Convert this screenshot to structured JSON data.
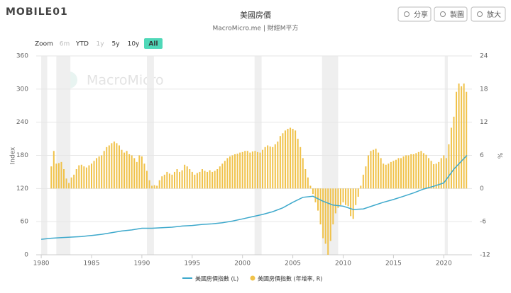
{
  "ui": {
    "logo": "MOBILE01",
    "buttons": [
      "分享",
      "製圖",
      "放大"
    ],
    "zoom_label": "Zoom",
    "ranges": [
      "6m",
      "YTD",
      "1y",
      "5y",
      "10y",
      "All"
    ],
    "disabled_ranges": [
      "6m",
      "1y"
    ],
    "active_range": "All",
    "watermark": "MacroMicro"
  },
  "chart_data": {
    "type": "bar_line",
    "title": "美國房價",
    "subtitle": "MacroMicro.me | 財經M平方",
    "ylabel": "Index",
    "y2label": "%",
    "xlim": [
      1979.5,
      2022.8
    ],
    "xticks": [
      1980,
      1985,
      1990,
      1995,
      2000,
      2005,
      2010,
      2015,
      2020
    ],
    "ylim": [
      0,
      360
    ],
    "yticks": [
      0,
      60,
      120,
      180,
      240,
      300,
      360
    ],
    "y2lim": [
      -12,
      24
    ],
    "y2ticks": [
      -12,
      -6,
      0,
      6,
      12,
      18,
      24
    ],
    "grid": true,
    "shaded_periods": [
      [
        1980,
        1980.6
      ],
      [
        1981.5,
        1982.9
      ],
      [
        1990.5,
        1991.2
      ],
      [
        2001.2,
        2001.9
      ],
      [
        2007.9,
        2009.5
      ],
      [
        2020.1,
        2020.4
      ]
    ],
    "series": [
      {
        "name": "美國房價指數 (L)",
        "type": "line",
        "color": "#3ea9cc",
        "x": [
          1980,
          1981,
          1982,
          1983,
          1984,
          1985,
          1986,
          1987,
          1988,
          1989,
          1990,
          1991,
          1992,
          1993,
          1994,
          1995,
          1996,
          1997,
          1998,
          1999,
          2000,
          2001,
          2002,
          2003,
          2004,
          2005,
          2006,
          2007,
          2008,
          2009,
          2010,
          2011,
          2012,
          2013,
          2014,
          2015,
          2016,
          2017,
          2018,
          2019,
          2020,
          2021,
          2022.3
        ],
        "values": [
          28,
          30,
          31,
          32,
          33,
          35,
          37,
          40,
          43,
          45,
          48,
          48,
          49,
          50,
          52,
          53,
          55,
          56,
          58,
          61,
          65,
          69,
          73,
          78,
          85,
          95,
          104,
          106,
          97,
          90,
          88,
          82,
          83,
          89,
          95,
          100,
          106,
          112,
          119,
          124,
          130,
          155,
          180
        ]
      },
      {
        "name": "美國房價指數 (年增率, R)",
        "type": "bar",
        "axis": "y2",
        "color": "#f0c24a",
        "x": [
          1981,
          1981.25,
          1981.5,
          1981.75,
          1982,
          1982.25,
          1982.5,
          1982.75,
          1983,
          1983.25,
          1983.5,
          1983.75,
          1984,
          1984.25,
          1984.5,
          1984.75,
          1985,
          1985.25,
          1985.5,
          1985.75,
          1986,
          1986.25,
          1986.5,
          1986.75,
          1987,
          1987.25,
          1987.5,
          1987.75,
          1988,
          1988.25,
          1988.5,
          1988.75,
          1989,
          1989.25,
          1989.5,
          1989.75,
          1990,
          1990.25,
          1990.5,
          1990.75,
          1991,
          1991.25,
          1991.5,
          1991.75,
          1992,
          1992.25,
          1992.5,
          1992.75,
          1993,
          1993.25,
          1993.5,
          1993.75,
          1994,
          1994.25,
          1994.5,
          1994.75,
          1995,
          1995.25,
          1995.5,
          1995.75,
          1996,
          1996.25,
          1996.5,
          1996.75,
          1997,
          1997.25,
          1997.5,
          1997.75,
          1998,
          1998.25,
          1998.5,
          1998.75,
          1999,
          1999.25,
          1999.5,
          1999.75,
          2000,
          2000.25,
          2000.5,
          2000.75,
          2001,
          2001.25,
          2001.5,
          2001.75,
          2002,
          2002.25,
          2002.5,
          2002.75,
          2003,
          2003.25,
          2003.5,
          2003.75,
          2004,
          2004.25,
          2004.5,
          2004.75,
          2005,
          2005.25,
          2005.5,
          2005.75,
          2006,
          2006.25,
          2006.5,
          2006.75,
          2007,
          2007.25,
          2007.5,
          2007.75,
          2008,
          2008.25,
          2008.5,
          2008.75,
          2009,
          2009.25,
          2009.5,
          2009.75,
          2010,
          2010.25,
          2010.5,
          2010.75,
          2011,
          2011.25,
          2011.5,
          2011.75,
          2012,
          2012.25,
          2012.5,
          2012.75,
          2013,
          2013.25,
          2013.5,
          2013.75,
          2014,
          2014.25,
          2014.5,
          2014.75,
          2015,
          2015.25,
          2015.5,
          2015.75,
          2016,
          2016.25,
          2016.5,
          2016.75,
          2017,
          2017.25,
          2017.5,
          2017.75,
          2018,
          2018.25,
          2018.5,
          2018.75,
          2019,
          2019.25,
          2019.5,
          2019.75,
          2020,
          2020.25,
          2020.5,
          2020.75,
          2021,
          2021.25,
          2021.5,
          2021.75,
          2022,
          2022.25
        ],
        "values": [
          4.0,
          6.8,
          4.5,
          4.6,
          4.8,
          3.5,
          1.8,
          1.0,
          2.0,
          2.5,
          3.5,
          4.2,
          4.3,
          4.0,
          3.8,
          4.2,
          4.5,
          5.0,
          5.5,
          5.8,
          6.0,
          6.8,
          7.5,
          7.8,
          8.2,
          8.5,
          8.2,
          7.8,
          7.0,
          6.5,
          6.8,
          6.2,
          6.0,
          5.5,
          4.8,
          6.0,
          5.8,
          4.5,
          3.2,
          1.5,
          0.5,
          0.6,
          0.5,
          1.5,
          2.2,
          2.5,
          3.0,
          2.7,
          2.5,
          3.0,
          3.5,
          3.0,
          3.3,
          4.3,
          4.0,
          3.5,
          3.0,
          2.5,
          2.8,
          3.0,
          3.5,
          3.2,
          3.0,
          3.3,
          3.0,
          3.2,
          3.5,
          4.0,
          4.5,
          5.0,
          5.5,
          5.8,
          6.0,
          6.2,
          6.3,
          6.5,
          6.6,
          6.8,
          6.8,
          6.5,
          6.7,
          6.8,
          6.6,
          6.5,
          7.0,
          7.5,
          7.8,
          7.6,
          7.5,
          8.0,
          8.5,
          9.5,
          10.0,
          10.5,
          10.8,
          11.0,
          10.8,
          10.5,
          9.0,
          7.5,
          5.5,
          3.5,
          2.0,
          0.5,
          -1.0,
          -2.5,
          -4.0,
          -6.5,
          -9.0,
          -10.0,
          -12.0,
          -9.5,
          -6.5,
          -4.5,
          -3.5,
          -3.0,
          -2.5,
          -3.0,
          -3.2,
          -5.0,
          -5.5,
          -3.0,
          -1.5,
          0.5,
          2.5,
          4.0,
          6.0,
          6.8,
          7.0,
          7.2,
          6.5,
          5.5,
          4.5,
          4.3,
          4.5,
          4.8,
          5.0,
          5.2,
          5.5,
          5.5,
          5.8,
          6.0,
          6.0,
          6.2,
          6.2,
          6.4,
          6.6,
          6.8,
          6.4,
          6.1,
          5.5,
          5.0,
          4.4,
          4.5,
          4.8,
          5.5,
          6.0,
          5.5,
          8.0,
          11.0,
          13.0,
          17.5,
          19.0,
          18.5,
          19.0,
          17.5
        ]
      }
    ]
  }
}
